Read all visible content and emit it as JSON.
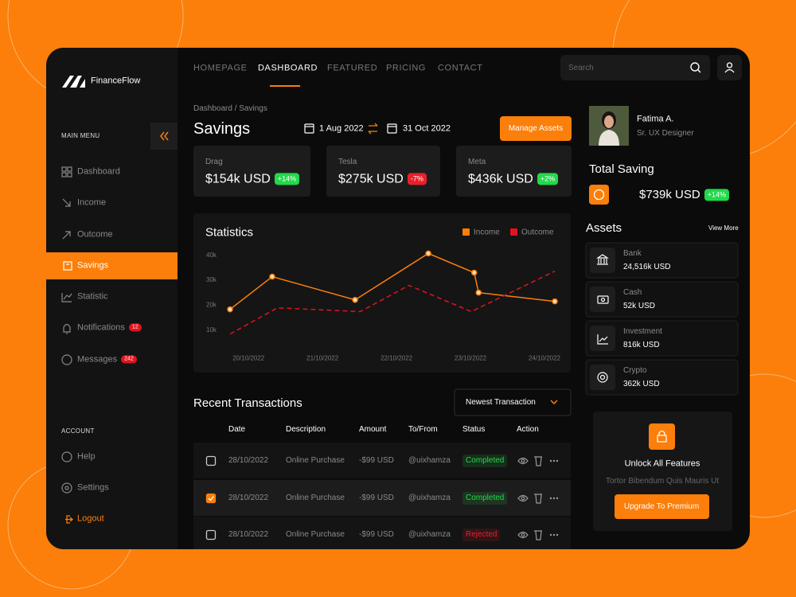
{
  "brand": "FinanceFlow",
  "nav": {
    "items": [
      "HOMEPAGE",
      "DASHBOARD",
      "FEATURED",
      "PRICING",
      "CONTACT"
    ],
    "active": 1
  },
  "search": "Search",
  "sidebar": {
    "main_menu": "MAIN MENU",
    "items": [
      {
        "label": "Dashboard"
      },
      {
        "label": "Income"
      },
      {
        "label": "Outcome"
      },
      {
        "label": "Savings"
      },
      {
        "label": "Statistic"
      },
      {
        "label": "Notifications",
        "badge": 12
      },
      {
        "label": "Messages",
        "badge": 242
      }
    ],
    "active": 3,
    "account": "ACCOUNT",
    "account_items": [
      "Help",
      "Settings",
      "Logout"
    ]
  },
  "header": {
    "breadcrumb": "Dashboard / Savings",
    "title": "Savings",
    "date_from": "1 Aug 2022",
    "date_to": "31 Oct 2022",
    "button": "Manage Assets"
  },
  "cards": [
    {
      "name": "Drag",
      "value": "$154k USD",
      "change": "+14%",
      "change_color": "#22d94a"
    },
    {
      "name": "Tesla",
      "value": "$275k USD",
      "change": "-7%",
      "change_color": "#e8202a"
    },
    {
      "name": "Meta",
      "value": "$436k USD",
      "change": "+2%",
      "change_color": "#22d94a"
    }
  ],
  "chart_data": {
    "type": "line",
    "title": "Statistics",
    "legend": "top-right",
    "grid": false,
    "xlim": [
      19.75,
      24.14
    ],
    "xticks": [
      {
        "value": 20,
        "label": "20/10/2022"
      },
      {
        "value": 21,
        "label": "21/10/2022"
      },
      {
        "value": 22,
        "label": "22/10/2022"
      },
      {
        "value": 23,
        "label": "23/10/2022"
      },
      {
        "value": 24,
        "label": "24/10/2022"
      }
    ],
    "ylim": [
      5000,
      42000
    ],
    "yticks": [
      {
        "value": 10000,
        "label": "10k"
      },
      {
        "value": 20000,
        "label": "20k"
      },
      {
        "value": 30000,
        "label": "30k"
      },
      {
        "value": 40000,
        "label": "40k"
      }
    ],
    "series": [
      {
        "name": "Income",
        "color": "#fb7f0a",
        "dash": false,
        "markers": true,
        "x": [
          19.75,
          20.32,
          21.44,
          22.43,
          23.05,
          23.11,
          24.14
        ],
        "values": [
          18200,
          31300,
          22000,
          40600,
          32900,
          24900,
          21400
        ]
      },
      {
        "name": "Outcome",
        "color": "#e0141e",
        "dash": true,
        "markers": false,
        "x": [
          19.75,
          20.39,
          21.51,
          22.17,
          23.01,
          24.14
        ],
        "values": [
          8300,
          18800,
          17300,
          27800,
          17300,
          33500
        ]
      }
    ]
  },
  "transactions": {
    "title": "Recent Transactions",
    "sort": "Newest Transaction",
    "columns": [
      "Date",
      "Description",
      "Amount",
      "To/From",
      "Status",
      "Action"
    ],
    "rows": [
      {
        "checked": false,
        "date": "28/10/2022",
        "description": "Online Purchase",
        "amount": "-$99 USD",
        "party": "@uixhamza",
        "status": "Completed",
        "status_color": "#22d94a"
      },
      {
        "checked": true,
        "date": "28/10/2022",
        "description": "Online Purchase",
        "amount": "-$99 USD",
        "party": "@uixhamza",
        "status": "Completed",
        "status_color": "#22d94a"
      },
      {
        "checked": false,
        "date": "28/10/2022",
        "description": "Online Purchase",
        "amount": "-$99 USD",
        "party": "@uixhamza",
        "status": "Rejected",
        "status_color": "#e8202a"
      }
    ]
  },
  "profile": {
    "name": "Fatima A.",
    "role": "Sr. UX Designer"
  },
  "total_saving": {
    "title": "Total Saving",
    "value": "$739k USD",
    "change": "+14%",
    "change_color": "#22d94a"
  },
  "assets": {
    "title": "Assets",
    "more": "View More",
    "items": [
      {
        "label": "Bank",
        "value": "24,516k USD"
      },
      {
        "label": "Cash",
        "value": "52k USD"
      },
      {
        "label": "Investment",
        "value": "816k USD"
      },
      {
        "label": "Crypto",
        "value": "362k USD"
      }
    ]
  },
  "upgrade": {
    "title": "Unlock All Features",
    "text": "Tortor Bibendum Quis Mauris Ut",
    "button": "Upgrade To Premium"
  }
}
